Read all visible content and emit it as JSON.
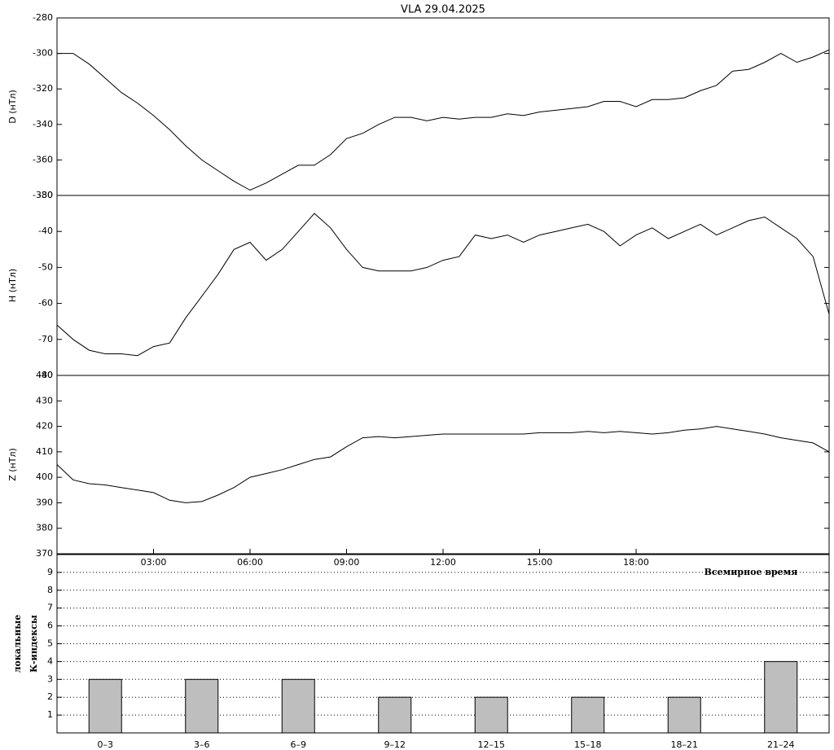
{
  "chart_data": [
    {
      "type": "line",
      "title": "VLA   29.04.2025",
      "ylabel": "D (нТл)",
      "color": "#000000",
      "x": [
        0,
        0.5,
        1,
        1.5,
        2,
        2.5,
        3,
        3.5,
        4,
        4.5,
        5,
        5.5,
        6,
        6.5,
        7,
        7.5,
        8,
        8.5,
        9,
        9.5,
        10,
        10.5,
        11,
        11.5,
        12,
        12.5,
        13,
        13.5,
        14,
        14.5,
        15,
        15.5,
        16,
        16.5,
        17,
        17.5,
        18,
        18.5,
        19,
        19.5,
        20,
        20.5,
        21,
        21.5,
        22,
        22.5,
        23,
        23.5,
        24
      ],
      "values": [
        -300,
        -300,
        -306,
        -314,
        -322,
        -328,
        -335,
        -343,
        -352,
        -360,
        -366,
        -372,
        -377,
        -373,
        -368,
        -363,
        -363,
        -357,
        -348,
        -345,
        -340,
        -336,
        -336,
        -338,
        -336,
        -337,
        -336,
        -336,
        -334,
        -335,
        -333,
        -332,
        -331,
        -330,
        -327,
        -327,
        -330,
        -326,
        -326,
        -325,
        -321,
        -318,
        -310,
        -309,
        -305,
        -300,
        -305,
        -302,
        -298
      ],
      "xlim": [
        0,
        24
      ],
      "ylim": [
        -380,
        -280
      ],
      "yticks": [
        -280,
        -300,
        -320,
        -340,
        -360,
        -380
      ]
    },
    {
      "type": "line",
      "ylabel": "H (нТл)",
      "color": "#000000",
      "x": [
        0,
        0.5,
        1,
        1.5,
        2,
        2.5,
        3,
        3.5,
        4,
        4.5,
        5,
        5.5,
        6,
        6.5,
        7,
        7.5,
        8,
        8.5,
        9,
        9.5,
        10,
        10.5,
        11,
        11.5,
        12,
        12.5,
        13,
        13.5,
        14,
        14.5,
        15,
        15.5,
        16,
        16.5,
        17,
        17.5,
        18,
        18.5,
        19,
        19.5,
        20,
        20.5,
        21,
        21.5,
        22,
        22.5,
        23,
        23.5,
        24
      ],
      "values": [
        -66,
        -70,
        -73,
        -74,
        -74,
        -74.5,
        -72,
        -71,
        -64,
        -58,
        -52,
        -45,
        -43,
        -48,
        -45,
        -40,
        -35,
        -39,
        -45,
        -50,
        -51,
        -51,
        -51,
        -50,
        -48,
        -47,
        -41,
        -42,
        -41,
        -43,
        -41,
        -40,
        -39,
        -38,
        -40,
        -44,
        -41,
        -39,
        -42,
        -40,
        -38,
        -41,
        -39,
        -37,
        -36,
        -39,
        -42,
        -47,
        -63
      ],
      "xlim": [
        0,
        24
      ],
      "ylim": [
        -80,
        -30
      ],
      "yticks": [
        -30,
        -40,
        -50,
        -60,
        -70,
        -80
      ]
    },
    {
      "type": "line",
      "ylabel": "Z (нТл)",
      "xlabel": "Всемирное время",
      "color": "#000000",
      "x": [
        0,
        0.5,
        1,
        1.5,
        2,
        2.5,
        3,
        3.5,
        4,
        4.5,
        5,
        5.5,
        6,
        6.5,
        7,
        7.5,
        8,
        8.5,
        9,
        9.5,
        10,
        10.5,
        11,
        11.5,
        12,
        12.5,
        13,
        13.5,
        14,
        14.5,
        15,
        15.5,
        16,
        16.5,
        17,
        17.5,
        18,
        18.5,
        19,
        19.5,
        20,
        20.5,
        21,
        21.5,
        22,
        22.5,
        23,
        23.5,
        24
      ],
      "values": [
        405,
        399,
        397.5,
        397,
        396,
        395,
        394,
        391,
        390,
        390.5,
        393,
        396,
        400,
        401.5,
        403,
        405,
        407,
        408,
        412,
        415.5,
        416,
        415.5,
        416,
        416.5,
        417,
        417,
        417,
        417,
        417,
        417,
        417.5,
        417.5,
        417.5,
        418,
        417.5,
        418,
        417.5,
        417,
        417.5,
        418.5,
        419,
        420,
        419,
        418,
        417,
        415.5,
        414.5,
        413.5,
        410
      ],
      "xlim": [
        0,
        24
      ],
      "ylim": [
        370,
        440
      ],
      "yticks": [
        370,
        380,
        390,
        400,
        410,
        420,
        430,
        440
      ],
      "xticks": [
        {
          "value": 3,
          "label": "03:00"
        },
        {
          "value": 6,
          "label": "06:00"
        },
        {
          "value": 9,
          "label": "09:00"
        },
        {
          "value": 12,
          "label": "12:00"
        },
        {
          "value": 15,
          "label": "15:00"
        },
        {
          "value": 18,
          "label": "18:00"
        }
      ]
    },
    {
      "type": "bar",
      "ylabel": [
        "локальные",
        "К-индексы"
      ],
      "color": "#bebebe",
      "categories": [
        "0–3",
        "3–6",
        "6–9",
        "9–12",
        "12–15",
        "15–18",
        "18–21",
        "21–24"
      ],
      "values": [
        3,
        3,
        3,
        2,
        2,
        2,
        2,
        4
      ],
      "ylim": [
        0,
        10
      ],
      "yticks": [
        1,
        2,
        3,
        4,
        5,
        6,
        7,
        8,
        9
      ],
      "grid": true
    }
  ]
}
